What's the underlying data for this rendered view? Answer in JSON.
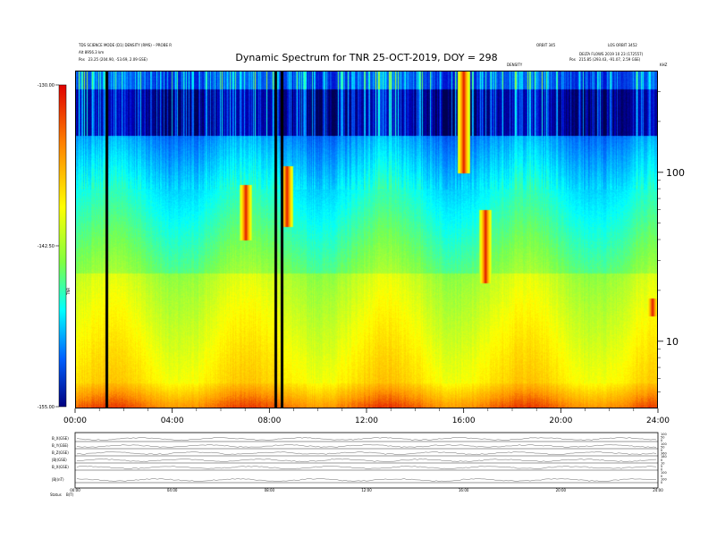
{
  "header": {
    "left_line1": "TDS SCIENCE MODE (D1) DENSITY (RMS) – PROBE R",
    "left_line2": "Alt 8956.3 km",
    "left_line3_label": "Pos",
    "left_line3_value": "23.25 (204.90, -53.69, 2.09 GSE)",
    "right_line1": "ORBIT 345",
    "right_line2": "DELTA FLOWS 2019 10 23 (172557)",
    "right_line3_label": "Pos",
    "right_line3_value": "215.85 (293.43, -91.07, 2.59 GSE)",
    "top_right_small": "LOS ORBIT 3452",
    "marker_label": "DENSITY",
    "marker_right": "KHZ"
  },
  "title": "Dynamic Spectrum for TNR 25-OCT-2019, DOY = 298",
  "chart_data": {
    "type": "heatmap",
    "title": "Dynamic Spectrum for TNR 25-OCT-2019, DOY = 298",
    "x": {
      "ticks": [
        "00:00",
        "04:00",
        "08:00",
        "12:00",
        "16:00",
        "20:00",
        "24:00"
      ],
      "range_hours": [
        0,
        24
      ]
    },
    "y": {
      "scale": "log",
      "ticks": [
        100,
        10
      ],
      "range_khz": [
        4,
        400
      ]
    },
    "colorbar": {
      "ticks": [
        "-130.00",
        "-142.50",
        "-155.00"
      ],
      "range_db": [
        -155,
        -130
      ],
      "label": "TNR"
    },
    "data_gaps_hours": [
      1.2,
      8.2,
      8.45
    ],
    "bursts": [
      {
        "t_hours": 7.0,
        "top_khz": 85,
        "bottom_khz": 40
      },
      {
        "t_hours": 8.7,
        "top_khz": 110,
        "bottom_khz": 48
      },
      {
        "t_hours": 16.0,
        "top_khz": 400,
        "bottom_khz": 100
      },
      {
        "t_hours": 16.9,
        "top_khz": 60,
        "bottom_khz": 22
      },
      {
        "t_hours": 23.8,
        "top_khz": 18,
        "bottom_khz": 14
      }
    ]
  },
  "bottom_panel": {
    "rows": [
      "B_X(GSE)",
      "B_Y(GSE)",
      "B_Z(GSE)",
      "|B|(GSE)",
      "B_X(GSE)",
      "|B|(nT)"
    ],
    "x_ticks": [
      "00:00",
      "04:00",
      "08:00",
      "12:00",
      "16:00",
      "20:00",
      "24:00"
    ],
    "right_ticks": [
      "100",
      "50",
      "0",
      "100",
      "50",
      "0",
      "360",
      "180",
      "0",
      "10",
      "5",
      "0",
      "100",
      "0",
      "100",
      "0"
    ],
    "footer_label": "Status",
    "footer_value": "B(T)"
  }
}
